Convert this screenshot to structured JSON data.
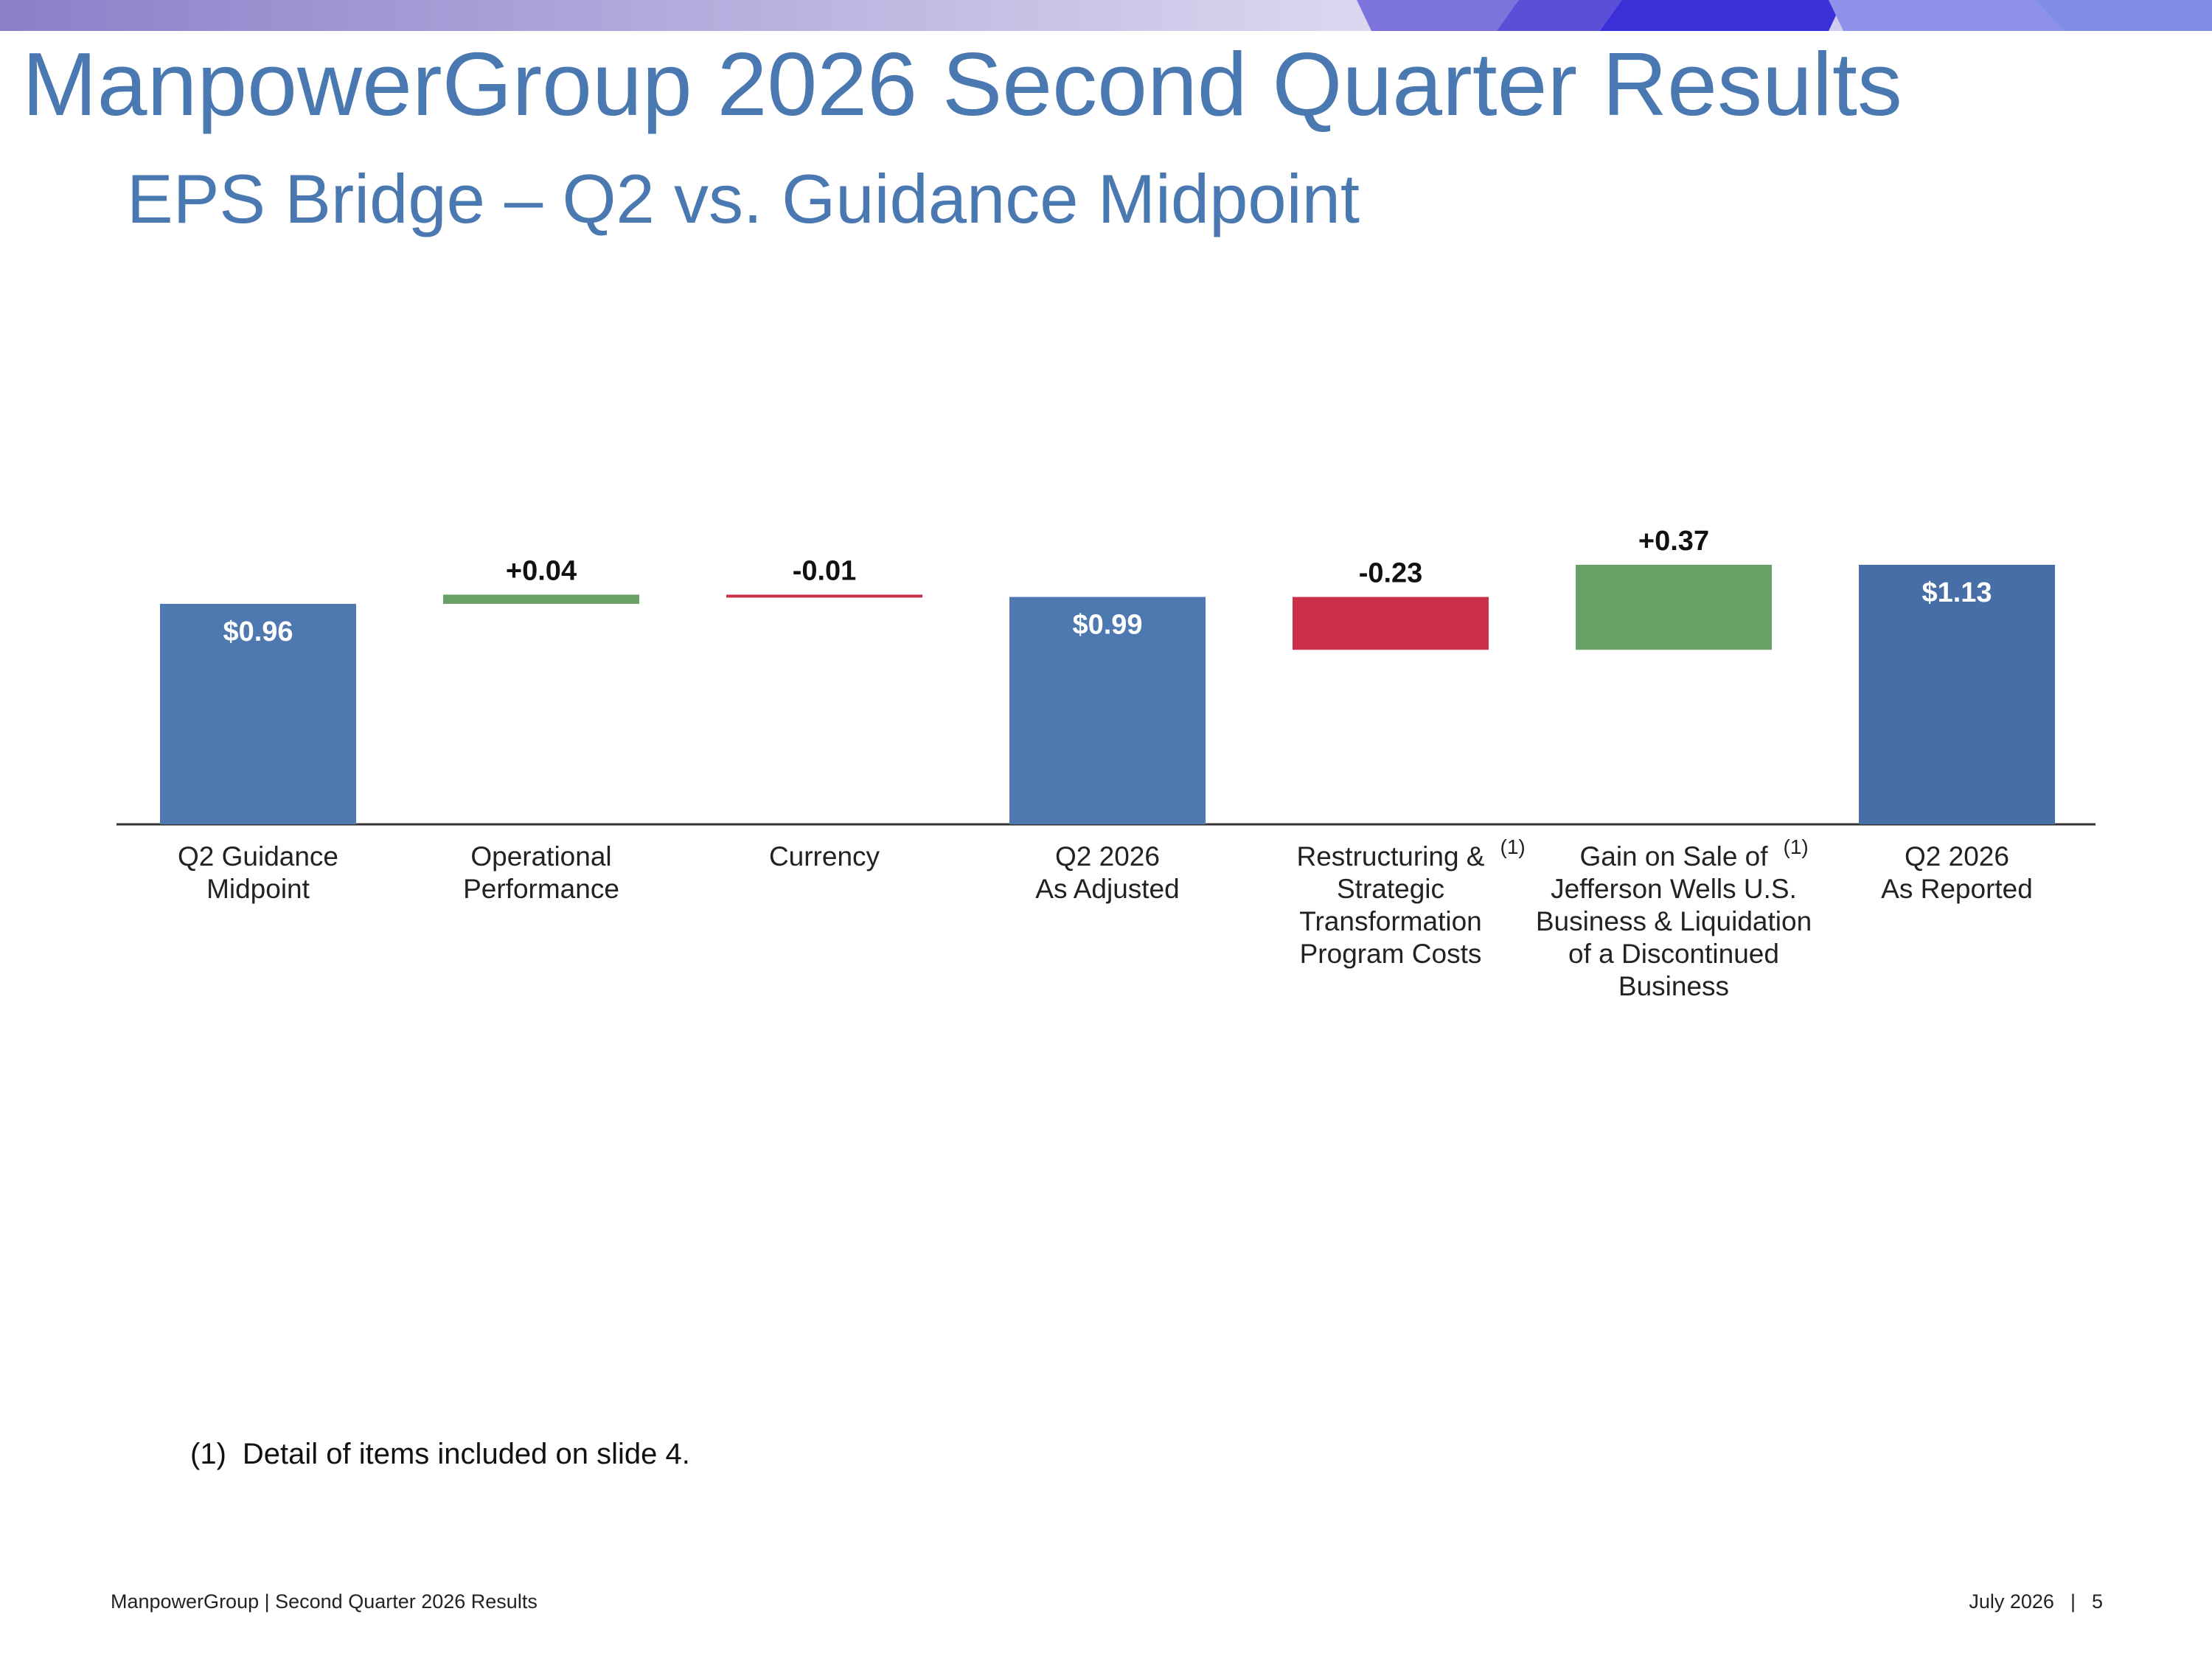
{
  "header": {
    "title": "ManpowerGroup 2026 Second Quarter Results",
    "subtitle": "EPS Bridge – Q2 vs. Guidance Midpoint"
  },
  "colors": {
    "title": "#4a78b0",
    "base_bar": "#4e79b0",
    "final_bar": "#476ea6",
    "increase": "#69a065",
    "decrease": "#cc3049",
    "axis": "#333333",
    "band_gradient": [
      "#8f86cd",
      "#d6d3ee",
      "#3d2fd8",
      "#a6b1ef"
    ]
  },
  "chart_data": {
    "type": "bar",
    "subtype": "waterfall",
    "title": "",
    "xlabel": "",
    "ylabel": "",
    "categories": [
      [
        "Q2 Guidance",
        "Midpoint"
      ],
      [
        "Operational",
        "Performance"
      ],
      [
        "Currency"
      ],
      [
        "Q2 2026",
        "As Adjusted"
      ],
      [
        "Restructuring &",
        "Strategic",
        "Transformation",
        "Program Costs"
      ],
      [
        "Gain on Sale of",
        "Jefferson Wells U.S.",
        "Business & Liquidation",
        "of a Discontinued",
        "Business"
      ],
      [
        "Q2 2026",
        "As Reported"
      ]
    ],
    "category_footnotes": [
      "",
      "",
      "",
      "",
      "(1)",
      "(1)",
      ""
    ],
    "steps": [
      {
        "kind": "total",
        "value": 0.96,
        "label": "$0.96"
      },
      {
        "kind": "delta",
        "value": 0.04,
        "label": "+0.04"
      },
      {
        "kind": "delta",
        "value": -0.01,
        "label": "-0.01"
      },
      {
        "kind": "total",
        "value": 0.99,
        "label": "$0.99"
      },
      {
        "kind": "delta",
        "value": -0.23,
        "label": "-0.23"
      },
      {
        "kind": "delta",
        "value": 0.37,
        "label": "+0.37"
      },
      {
        "kind": "total",
        "value": 1.13,
        "label": "$1.13"
      }
    ],
    "ylim": [
      0,
      1.13
    ],
    "grid": false,
    "legend": "none"
  },
  "footnote": {
    "marker": "(1)",
    "text": "Detail of items included on slide 4."
  },
  "footer": {
    "left": "ManpowerGroup  |  Second Quarter 2026 Results",
    "date": "July 2026",
    "separator": "|",
    "page": "5"
  }
}
